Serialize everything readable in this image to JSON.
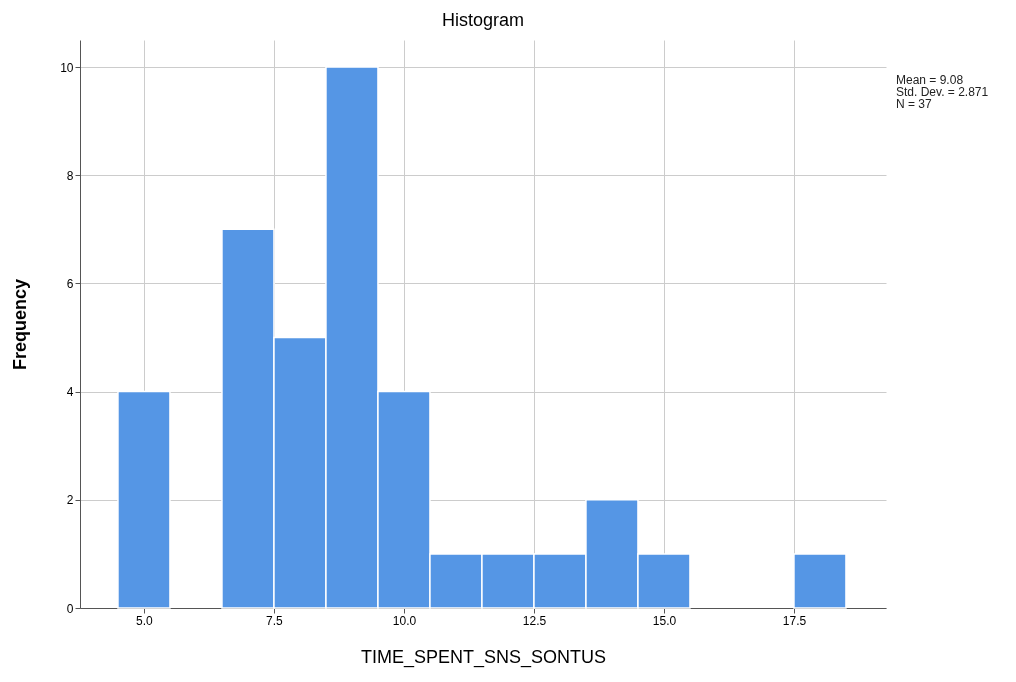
{
  "chart_data": {
    "type": "histogram",
    "title": "Histogram",
    "xlabel": "TIME_SPENT_SNS_SONTUS",
    "ylabel": "Frequency",
    "bins": [
      4.5,
      5.5,
      6.5,
      7.5,
      8.5,
      9.5,
      10.5,
      11.5,
      12.5,
      13.5,
      14.5,
      15.5,
      16.5,
      17.5,
      18.5
    ],
    "values": [
      4,
      0,
      7,
      5,
      10,
      4,
      1,
      1,
      1,
      2,
      1,
      0,
      0,
      1
    ],
    "color": "#5596e5",
    "xlim": [
      3.77,
      19.27
    ],
    "xticks": [
      {
        "value": 5,
        "label": "5.0"
      },
      {
        "value": 7.5,
        "label": "7.5"
      },
      {
        "value": 10,
        "label": "10.0"
      },
      {
        "value": 12.5,
        "label": "12.5"
      },
      {
        "value": 15,
        "label": "15.0"
      },
      {
        "value": 17.5,
        "label": "17.5"
      }
    ],
    "ylim": [
      0,
      10.5
    ],
    "yticks": [
      0,
      2,
      4,
      6,
      8,
      10
    ],
    "grid": true,
    "annotations": [
      "Mean = 9.08",
      "Std. Dev. = 2.871",
      "N = 37"
    ]
  }
}
